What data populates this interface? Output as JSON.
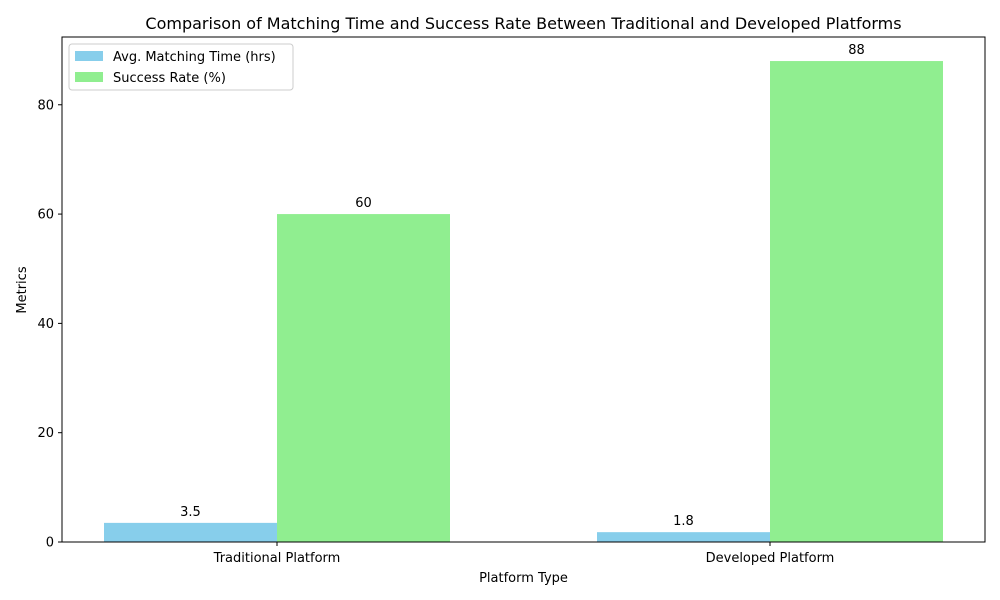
{
  "chart_data": {
    "type": "bar",
    "title": "Comparison of Matching Time and Success Rate Between Traditional and Developed Platforms",
    "xlabel": "Platform Type",
    "ylabel": "Metrics",
    "categories": [
      "Traditional Platform",
      "Developed Platform"
    ],
    "series": [
      {
        "name": "Avg. Matching Time (hrs)",
        "values": [
          3.5,
          1.8
        ],
        "color": "#87ceeb"
      },
      {
        "name": "Success Rate (%)",
        "values": [
          60,
          88
        ],
        "color": "#90ee90"
      }
    ],
    "data_labels": [
      [
        "3.5",
        "1.8"
      ],
      [
        "60",
        "88"
      ]
    ],
    "ylim": [
      0,
      92.4
    ],
    "yticks": [
      0,
      20,
      40,
      60,
      80
    ],
    "grid": false,
    "legend": "top-left"
  }
}
